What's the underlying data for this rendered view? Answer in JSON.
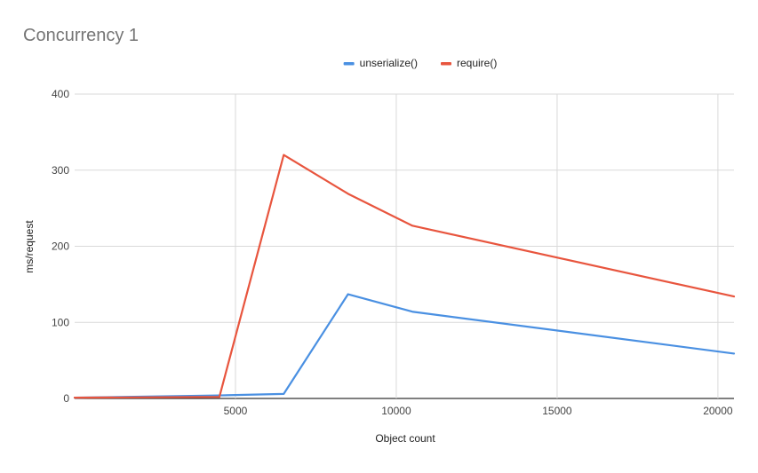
{
  "chart_data": {
    "type": "line",
    "title": "Concurrency 1",
    "xlabel": "Object count",
    "ylabel": "ms/request",
    "xlim": [
      0,
      20500
    ],
    "ylim": [
      0,
      400
    ],
    "x_ticks": [
      5000,
      10000,
      15000,
      20000
    ],
    "y_ticks": [
      0,
      100,
      200,
      300,
      400
    ],
    "x_tick_labels": [
      "5000",
      "10000",
      "15000",
      "20000"
    ],
    "y_tick_labels": [
      "0",
      "100",
      "200",
      "300",
      "400"
    ],
    "grid": true,
    "legend_position": "top",
    "series": [
      {
        "name": "unserialize()",
        "color": "#4a90e2",
        "x": [
          0,
          4500,
          6500,
          8500,
          10500,
          20500
        ],
        "values": [
          1,
          4,
          6,
          137,
          114,
          59
        ]
      },
      {
        "name": "require()",
        "color": "#e8553e",
        "x": [
          0,
          4500,
          6500,
          8500,
          10500,
          20500
        ],
        "values": [
          1,
          2,
          320,
          269,
          227,
          134
        ]
      }
    ]
  }
}
